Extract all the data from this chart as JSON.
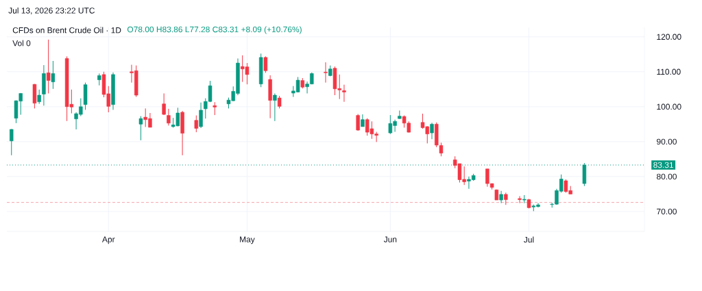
{
  "chart_data": {
    "type": "candlestick",
    "title": "CFDs on Brent Crude Oil · 1D",
    "subtitle": "O78.00 H83.86 L77.28 C83.31 +8.09 (+10.76%)",
    "annotations": [
      "Vol 0",
      "Jul 13, 2026 23:22 UTC"
    ],
    "x": [
      "2026-03-11",
      "2026-03-12",
      "2026-03-13",
      "2026-03-16",
      "2026-03-17",
      "2026-03-18",
      "2026-03-19",
      "2026-03-20",
      "2026-03-23",
      "2026-03-24",
      "2026-03-25",
      "2026-03-26",
      "2026-03-27",
      "2026-03-30",
      "2026-03-31",
      "2026-04-01",
      "2026-04-02",
      "2026-04-06",
      "2026-04-07",
      "2026-04-08",
      "2026-04-09",
      "2026-04-10",
      "2026-04-13",
      "2026-04-14",
      "2026-04-15",
      "2026-04-16",
      "2026-04-17",
      "2026-04-20",
      "2026-04-21",
      "2026-04-22",
      "2026-04-23",
      "2026-04-24",
      "2026-04-27",
      "2026-04-28",
      "2026-04-29",
      "2026-04-30",
      "2026-05-01",
      "2026-05-04",
      "2026-05-05",
      "2026-05-06",
      "2026-05-07",
      "2026-05-08",
      "2026-05-11",
      "2026-05-12",
      "2026-05-13",
      "2026-05-14",
      "2026-05-15",
      "2026-05-18",
      "2026-05-19",
      "2026-05-20",
      "2026-05-21",
      "2026-05-22",
      "2026-05-25",
      "2026-05-26",
      "2026-05-27",
      "2026-05-28",
      "2026-05-29",
      "2026-06-01",
      "2026-06-02",
      "2026-06-03",
      "2026-06-04",
      "2026-06-05",
      "2026-06-08",
      "2026-06-09",
      "2026-06-10",
      "2026-06-11",
      "2026-06-12",
      "2026-06-15",
      "2026-06-16",
      "2026-06-17",
      "2026-06-18",
      "2026-06-19",
      "2026-06-22",
      "2026-06-23",
      "2026-06-24",
      "2026-06-25",
      "2026-06-26",
      "2026-06-29",
      "2026-06-30",
      "2026-07-01",
      "2026-07-02",
      "2026-07-03",
      "2026-07-06",
      "2026-07-07",
      "2026-07-08",
      "2026-07-09",
      "2026-07-10",
      "2026-07-13"
    ],
    "ohlc": [
      [
        90.2,
        93.6,
        86.1,
        93.5
      ],
      [
        96.7,
        101.8,
        95.3,
        101.7
      ],
      [
        101.6,
        103.9,
        97.7,
        103.8
      ],
      [
        106.4,
        106.5,
        99.5,
        101.0
      ],
      [
        101.4,
        104.9,
        100.8,
        103.3
      ],
      [
        103.6,
        111.9,
        100.3,
        109.5
      ],
      [
        109.7,
        119.2,
        103.8,
        107.5
      ],
      [
        107.1,
        113.1,
        105.1,
        109.5
      ],
      [
        113.8,
        114.4,
        95.9,
        100.0
      ],
      [
        100.7,
        104.9,
        98.1,
        99.9
      ],
      [
        96.5,
        98.4,
        93.5,
        98.0
      ],
      [
        97.8,
        102.4,
        97.3,
        100.0
      ],
      [
        100.6,
        106.9,
        99.1,
        106.3
      ],
      [
        107.7,
        109.5,
        106.1,
        108.9
      ],
      [
        109.2,
        110.0,
        102.7,
        103.5
      ],
      [
        103.7,
        105.9,
        98.4,
        100.1
      ],
      [
        100.6,
        109.8,
        99.1,
        109.2
      ],
      [
        110.0,
        112.0,
        106.9,
        109.7
      ],
      [
        110.3,
        111.8,
        102.8,
        103.3
      ],
      [
        95.0,
        97.3,
        90.4,
        96.6
      ],
      [
        97.0,
        99.5,
        94.2,
        96.3
      ],
      [
        96.6,
        98.2,
        94.1,
        94.1
      ],
      [
        100.8,
        103.8,
        97.6,
        97.8
      ],
      [
        97.5,
        99.4,
        94.6,
        95.3
      ],
      [
        94.3,
        96.8,
        94.0,
        94.8
      ],
      [
        94.5,
        99.7,
        94.4,
        98.2
      ],
      [
        98.4,
        98.8,
        86.1,
        92.4
      ],
      [
        96.1,
        97.5,
        92.7,
        93.8
      ],
      [
        94.3,
        101.2,
        93.9,
        99.0
      ],
      [
        99.4,
        102.4,
        96.6,
        101.5
      ],
      [
        101.5,
        107.4,
        101.3,
        106.0
      ],
      [
        100.3,
        101.3,
        97.6,
        99.9
      ],
      [
        100.8,
        102.6,
        99.5,
        101.9
      ],
      [
        101.7,
        105.8,
        101.6,
        104.4
      ],
      [
        103.8,
        113.8,
        103.3,
        112.5
      ],
      [
        111.5,
        114.7,
        107.1,
        110.8
      ],
      [
        111.4,
        112.5,
        106.4,
        109.2
      ],
      [
        106.5,
        115.2,
        105.6,
        114.1
      ],
      [
        114.1,
        114.4,
        109.7,
        110.3
      ],
      [
        107.8,
        109.0,
        96.7,
        101.8
      ],
      [
        101.8,
        103.8,
        95.9,
        103.3
      ],
      [
        102.5,
        103.1,
        99.5,
        100.1
      ],
      [
        103.9,
        105.9,
        102.8,
        104.5
      ],
      [
        104.2,
        108.5,
        104.1,
        107.6
      ],
      [
        107.5,
        108.2,
        105.2,
        105.6
      ],
      [
        105.7,
        107.2,
        103.8,
        106.5
      ],
      [
        106.5,
        109.8,
        106.4,
        109.5
      ],
      [
        109.9,
        112.7,
        106.9,
        109.7
      ],
      [
        108.9,
        111.8,
        108.7,
        110.8
      ],
      [
        111.0,
        111.5,
        103.3,
        105.1
      ],
      [
        105.2,
        109.2,
        102.2,
        104.8
      ],
      [
        104.6,
        106.3,
        101.4,
        104.2
      ],
      [
        97.5,
        97.9,
        93.1,
        93.3
      ],
      [
        94.3,
        97.8,
        94.3,
        96.3
      ],
      [
        96.3,
        96.7,
        91.7,
        92.7
      ],
      [
        93.7,
        95.8,
        90.8,
        92.2
      ],
      [
        92.2,
        92.8,
        89.9,
        91.8
      ],
      [
        92.5,
        97.6,
        92.2,
        95.2
      ],
      [
        94.6,
        96.3,
        92.8,
        95.8
      ],
      [
        96.6,
        98.9,
        96.5,
        97.3
      ],
      [
        97.2,
        97.5,
        94.0,
        95.3
      ],
      [
        95.3,
        95.8,
        92.6,
        92.7
      ],
      [
        95.5,
        98.0,
        93.7,
        94.0
      ],
      [
        94.3,
        94.4,
        89.5,
        92.2
      ],
      [
        92.5,
        95.4,
        90.7,
        95.0
      ],
      [
        95.0,
        95.5,
        88.4,
        89.0
      ],
      [
        88.9,
        89.7,
        85.8,
        86.7
      ],
      [
        84.8,
        85.8,
        82.4,
        83.2
      ],
      [
        83.7,
        83.7,
        78.3,
        79.1
      ],
      [
        79.2,
        82.9,
        77.6,
        78.5
      ],
      [
        78.7,
        80.0,
        76.5,
        79.2
      ],
      [
        79.1,
        80.8,
        78.8,
        80.3
      ],
      [
        82.2,
        82.2,
        77.1,
        78.0
      ],
      [
        78.0,
        78.0,
        76.3,
        76.9
      ],
      [
        76.2,
        76.3,
        73.3,
        73.3
      ],
      [
        73.3,
        75.9,
        72.4,
        74.9
      ],
      [
        74.9,
        75.4,
        71.9,
        73.4
      ],
      [
        73.7,
        74.4,
        72.4,
        73.4
      ],
      [
        73.3,
        74.7,
        72.4,
        73.5
      ],
      [
        73.4,
        73.6,
        70.9,
        71.1
      ],
      [
        71.3,
        72.0,
        70.1,
        71.6
      ],
      [
        71.4,
        72.4,
        71.2,
        71.9
      ],
      [
        72.0,
        72.5,
        71.1,
        72.1
      ],
      [
        72.1,
        76.5,
        71.9,
        76.0
      ],
      [
        75.8,
        80.6,
        75.4,
        79.3
      ],
      [
        78.8,
        79.2,
        75.4,
        75.7
      ],
      [
        76.0,
        77.3,
        75.0,
        75.0
      ],
      [
        78.0,
        83.86,
        77.28,
        83.31
      ]
    ],
    "colors": [
      "#089981",
      "#089981",
      "#089981",
      "#f23645",
      "#089981",
      "#089981",
      "#f23645",
      "#089981",
      "#f23645",
      "#f23645",
      "#089981",
      "#089981",
      "#089981",
      "#089981",
      "#f23645",
      "#f23645",
      "#089981",
      "#f23645",
      "#f23645",
      "#089981",
      "#f23645",
      "#f23645",
      "#f23645",
      "#f23645",
      "#089981",
      "#089981",
      "#f23645",
      "#f23645",
      "#089981",
      "#089981",
      "#089981",
      "#f23645",
      "#089981",
      "#089981",
      "#089981",
      "#f23645",
      "#f23645",
      "#089981",
      "#f23645",
      "#f23645",
      "#089981",
      "#f23645",
      "#089981",
      "#089981",
      "#f23645",
      "#089981",
      "#089981",
      "#f23645",
      "#089981",
      "#f23645",
      "#f23645",
      "#f23645",
      "#f23645",
      "#089981",
      "#f23645",
      "#f23645",
      "#f23645",
      "#089981",
      "#089981",
      "#089981",
      "#f23645",
      "#f23645",
      "#f23645",
      "#f23645",
      "#089981",
      "#f23645",
      "#f23645",
      "#f23645",
      "#f23645",
      "#f23645",
      "#089981",
      "#089981",
      "#f23645",
      "#f23645",
      "#f23645",
      "#089981",
      "#f23645",
      "#f23645",
      "#089981",
      "#f23645",
      "#089981",
      "#089981",
      "#089981",
      "#089981",
      "#089981",
      "#f23645",
      "#f23645",
      "#089981"
    ],
    "xlim": [
      "2026-03-10",
      "2026-07-26"
    ],
    "xticks": [
      {
        "value": "2026-04-01",
        "label": "Apr"
      },
      {
        "value": "2026-05-01",
        "label": "May"
      },
      {
        "value": "2026-06-01",
        "label": "Jun"
      },
      {
        "value": "2026-07-01",
        "label": "Jul"
      }
    ],
    "ylim": [
      64.3,
      122.7
    ],
    "yticks": [
      {
        "value": 70,
        "label": "70.00"
      },
      {
        "value": 80,
        "label": "80.00"
      },
      {
        "value": 90,
        "label": "90.00"
      },
      {
        "value": 100,
        "label": "100.00"
      },
      {
        "value": 110,
        "label": "110.00"
      },
      {
        "value": 120,
        "label": "120.00"
      }
    ],
    "grid": true,
    "ref_lines": [
      {
        "axis": "y",
        "value": 83.31,
        "label": "83.31",
        "color": "#089981",
        "line_style": "dotted"
      },
      {
        "axis": "y",
        "value": 72.6,
        "color": "#f5a3aa",
        "line_style": "dashed"
      }
    ]
  }
}
